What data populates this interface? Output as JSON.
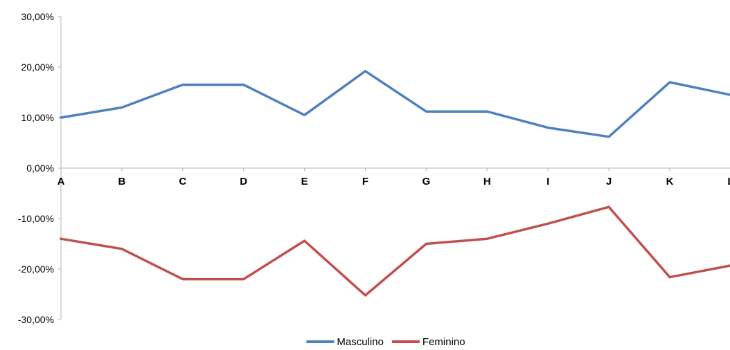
{
  "chart_data": {
    "type": "line",
    "title": "",
    "xlabel": "",
    "ylabel": "",
    "categories": [
      "A",
      "B",
      "C",
      "D",
      "E",
      "F",
      "G",
      "H",
      "I",
      "J",
      "K",
      "L"
    ],
    "y_ticks": [
      30,
      20,
      10,
      0,
      -10,
      -20,
      -30
    ],
    "y_tick_labels": [
      "30,00%",
      "20,00%",
      "10,00%",
      "0,00%",
      "-10,00%",
      "-20,00%",
      "-30,00%"
    ],
    "ylim": [
      -30,
      30
    ],
    "grid": false,
    "legend_position": "bottom",
    "series": [
      {
        "name": "Masculino",
        "color": "#4F81BD",
        "values": [
          10.0,
          12.0,
          16.5,
          16.5,
          10.5,
          19.2,
          11.2,
          11.2,
          8.0,
          6.2,
          17.0,
          14.5
        ]
      },
      {
        "name": "Feminino",
        "color": "#C0504D",
        "values": [
          -14.0,
          -16.0,
          -22.0,
          -22.0,
          -14.4,
          -25.2,
          -15.0,
          -14.0,
          -11.0,
          -7.7,
          -21.6,
          -19.3
        ]
      }
    ]
  }
}
